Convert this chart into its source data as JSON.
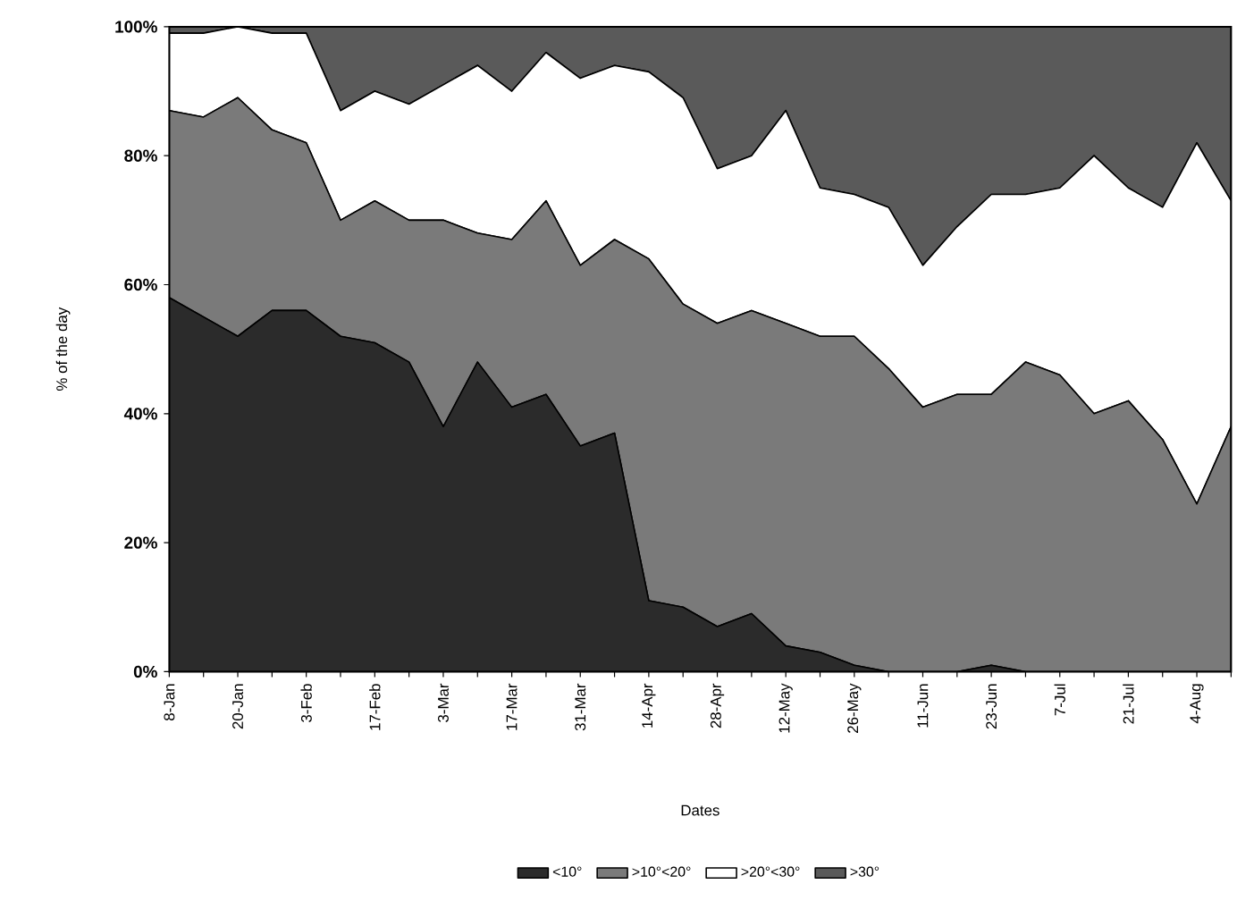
{
  "chart_data": {
    "type": "area",
    "stacked": true,
    "xlabel": "Dates",
    "ylabel": "% of the day",
    "categories": [
      "8-Jan",
      null,
      "20-Jan",
      null,
      "3-Feb",
      null,
      "17-Feb",
      null,
      "3-Mar",
      null,
      "17-Mar",
      null,
      "31-Mar",
      null,
      "14-Apr",
      null,
      "28-Apr",
      null,
      "12-May",
      null,
      "26-May",
      null,
      "11-Jun",
      null,
      "23-Jun",
      null,
      "7-Jul",
      null,
      "21-Jul",
      null,
      "4-Aug",
      null
    ],
    "ylim": [
      0,
      100
    ],
    "yticks": [
      {
        "value": 0,
        "label": "0%"
      },
      {
        "value": 20,
        "label": "20%"
      },
      {
        "value": 40,
        "label": "40%"
      },
      {
        "value": 60,
        "label": "60%"
      },
      {
        "value": 80,
        "label": "80%"
      },
      {
        "value": 100,
        "label": "100%"
      }
    ],
    "legend": "bottom",
    "series": [
      {
        "name": "<10°",
        "color": "#2b2b2b",
        "values": [
          58,
          55,
          52,
          56,
          56,
          52,
          51,
          48,
          38,
          48,
          41,
          43,
          35,
          37,
          11,
          10,
          7,
          9,
          4,
          3,
          1,
          0,
          0,
          0,
          1,
          0,
          0,
          0,
          0,
          0,
          0,
          0
        ]
      },
      {
        "name": ">10°<20°",
        "color": "#7a7a7a",
        "values": [
          29,
          31,
          37,
          28,
          26,
          18,
          22,
          22,
          32,
          20,
          26,
          30,
          28,
          30,
          53,
          47,
          47,
          47,
          50,
          49,
          51,
          47,
          41,
          43,
          42,
          48,
          46,
          40,
          42,
          36,
          26,
          38
        ]
      },
      {
        "name": ">20°<30°",
        "color": "#ffffff",
        "values": [
          12,
          13,
          11,
          15,
          17,
          17,
          17,
          18,
          21,
          26,
          23,
          23,
          29,
          27,
          29,
          32,
          24,
          24,
          33,
          23,
          22,
          25,
          22,
          26,
          31,
          26,
          29,
          40,
          33,
          36,
          56,
          35
        ]
      },
      {
        "name": ">30°",
        "color": "#5a5a5a",
        "values": [
          1,
          1,
          0,
          1,
          1,
          13,
          10,
          12,
          9,
          6,
          10,
          4,
          8,
          6,
          7,
          11,
          22,
          20,
          13,
          25,
          26,
          28,
          37,
          31,
          26,
          26,
          25,
          20,
          25,
          28,
          18,
          27
        ]
      }
    ]
  }
}
